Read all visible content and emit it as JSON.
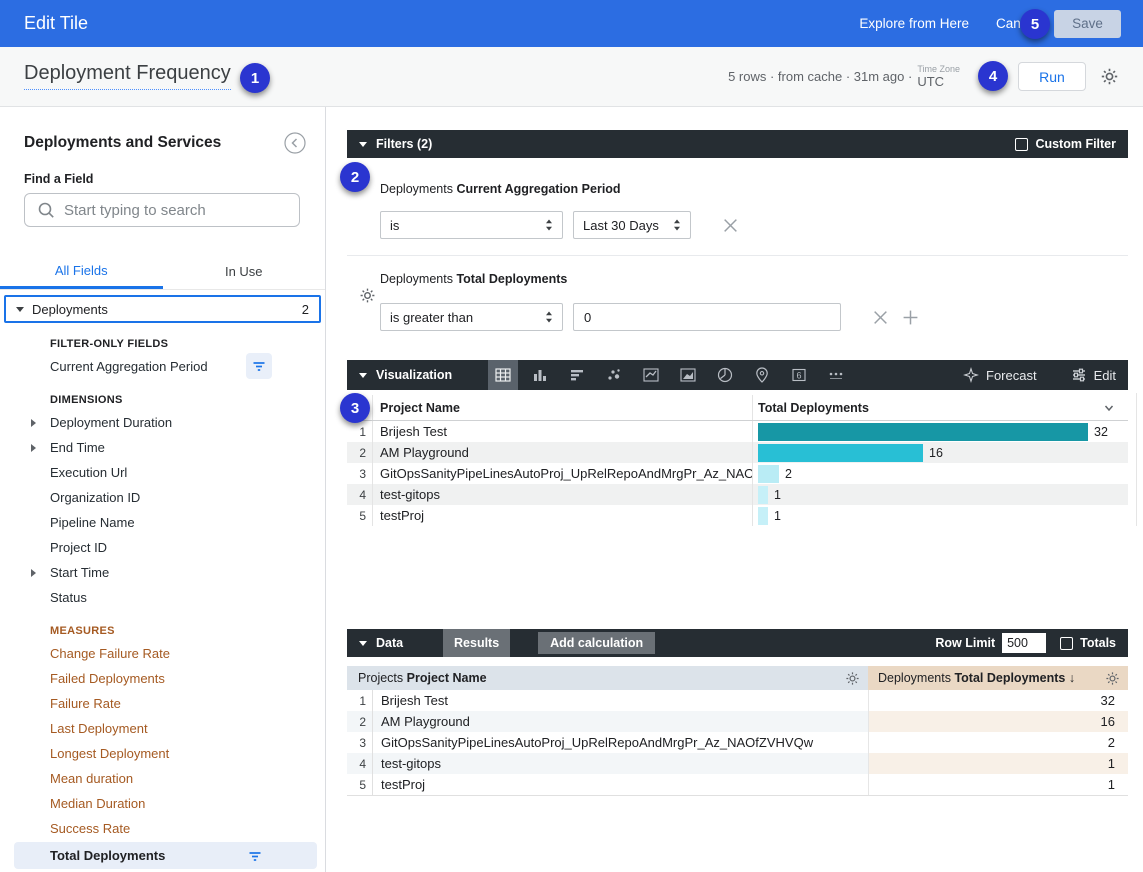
{
  "top_bar": {
    "app_title": "Edit Tile",
    "explore_label": "Explore from Here",
    "cancel_label": "Cancel",
    "save_label": "Save"
  },
  "title_bar": {
    "tile_title": "Deployment Frequency",
    "status_text": "5 rows · from cache · 31m ago ·",
    "timezone_label": "Time Zone",
    "timezone_value": "UTC",
    "run_label": "Run"
  },
  "badges": {
    "b1": "1",
    "b2": "2",
    "b3": "3",
    "b4": "4",
    "b5": "5"
  },
  "colors": {
    "topbar_blue": "#2c6de2",
    "accent_blue": "#1a73e8",
    "dark_bar": "#262d33",
    "measure_orange": "#a55a22",
    "badge_blue": "#2a35d0"
  },
  "sidebar": {
    "title": "Deployments and Services",
    "find_field_label": "Find a Field",
    "search_placeholder": "Start typing to search",
    "tab_all": "All Fields",
    "tab_in_use": "In Use",
    "group_label": "Deployments",
    "group_count": "2",
    "sections": [
      {
        "title": "FILTER-ONLY FIELDS",
        "kind": "dimension",
        "items": [
          {
            "label": "Current Aggregation Period",
            "filtered": true
          }
        ]
      },
      {
        "title": "DIMENSIONS",
        "kind": "dimension",
        "items": [
          {
            "label": "Deployment Duration",
            "expandable": true
          },
          {
            "label": "End Time",
            "expandable": true
          },
          {
            "label": "Execution Url"
          },
          {
            "label": "Organization ID"
          },
          {
            "label": "Pipeline Name"
          },
          {
            "label": "Project ID"
          },
          {
            "label": "Start Time",
            "expandable": true
          },
          {
            "label": "Status"
          }
        ]
      },
      {
        "title": "MEASURES",
        "kind": "measure",
        "items": [
          {
            "label": "Change Failure Rate"
          },
          {
            "label": "Failed Deployments"
          },
          {
            "label": "Failure Rate"
          },
          {
            "label": "Last Deployment"
          },
          {
            "label": "Longest Deployment"
          },
          {
            "label": "Mean duration"
          },
          {
            "label": "Median Duration"
          },
          {
            "label": "Success Rate"
          },
          {
            "label": "Total Deployments",
            "selected": true,
            "filtered": true
          }
        ]
      }
    ]
  },
  "filters": {
    "header": "Filters (2)",
    "custom_filter_label": "Custom Filter",
    "rows": [
      {
        "view": "Deployments",
        "field": "Current Aggregation Period",
        "operator": "is",
        "value": "Last 30 Days"
      },
      {
        "view": "Deployments",
        "field": "Total Deployments",
        "operator": "is greater than",
        "value": "0"
      }
    ]
  },
  "visualization": {
    "header": "Visualization",
    "forecast_label": "Forecast",
    "edit_label": "Edit",
    "selected_icon": "table",
    "single_value_glyph": "6"
  },
  "chart_data": {
    "type": "table",
    "title": "Deployment Frequency",
    "columns": [
      "Project Name",
      "Total Deployments"
    ],
    "max_value": 32,
    "rows": [
      {
        "name": "Brijesh Test",
        "value": 32,
        "bar_color": "#1797a5"
      },
      {
        "name": "AM Playground",
        "value": 16,
        "bar_color": "#28bfd5"
      },
      {
        "name": "GitOpsSanityPipeLinesAutoProj_UpRelRepoAndMrgPr_Az_NAOfZ...",
        "value": 2,
        "bar_color": "#b9ecf5"
      },
      {
        "name": "test-gitops",
        "value": 1,
        "bar_color": "#c6f0f8"
      },
      {
        "name": "testProj",
        "value": 1,
        "bar_color": "#c6f0f8"
      }
    ]
  },
  "data_section": {
    "header": "Data",
    "results_tab": "Results",
    "add_calculation": "Add calculation",
    "row_limit_label": "Row Limit",
    "row_limit_value": "500",
    "totals_label": "Totals",
    "col1_view": "Projects",
    "col1_field": "Project Name",
    "col2_view": "Deployments",
    "col2_field": "Total Deployments",
    "col2_sort": "↓",
    "rows": [
      {
        "name": "Brijesh Test",
        "value": "32"
      },
      {
        "name": "AM Playground",
        "value": "16"
      },
      {
        "name": "GitOpsSanityPipeLinesAutoProj_UpRelRepoAndMrgPr_Az_NAOfZVHVQw",
        "value": "2"
      },
      {
        "name": "test-gitops",
        "value": "1"
      },
      {
        "name": "testProj",
        "value": "1"
      }
    ]
  }
}
